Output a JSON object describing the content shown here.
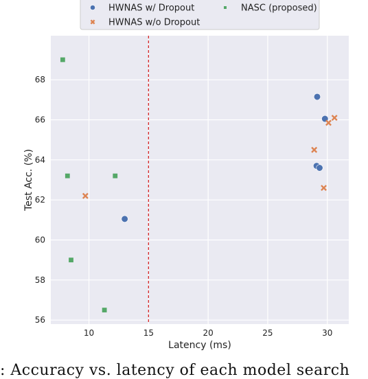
{
  "chart_data": {
    "type": "scatter",
    "xlabel": "Latency (ms)",
    "ylabel": "Test Acc. (%)",
    "xlim": [
      6.8,
      31.8
    ],
    "ylim": [
      55.8,
      70.2
    ],
    "x_ticks": [
      10,
      15,
      20,
      25,
      30
    ],
    "y_ticks": [
      56,
      58,
      60,
      62,
      64,
      66,
      68
    ],
    "grid": true,
    "background": "#eaeaf2",
    "legend_position": "top",
    "threshold_line": {
      "x": 15,
      "color": "#d62728",
      "style": "dashed"
    },
    "series": [
      {
        "name": "HWNAS w/ Dropout",
        "marker": "circle",
        "color": "#4c72b0",
        "points": [
          [
            13.0,
            61.05
          ],
          [
            29.15,
            67.15
          ],
          [
            29.8,
            66.05
          ],
          [
            29.1,
            63.7
          ],
          [
            29.35,
            63.6
          ]
        ]
      },
      {
        "name": "HWNAS w/o Dropout",
        "marker": "x",
        "color": "#dd8452",
        "points": [
          [
            9.7,
            62.2
          ],
          [
            28.9,
            64.5
          ],
          [
            29.7,
            62.6
          ],
          [
            30.1,
            65.85
          ],
          [
            30.6,
            66.1
          ]
        ]
      },
      {
        "name": "NASC (proposed)",
        "marker": "square",
        "color": "#55a868",
        "points": [
          [
            7.8,
            69.0
          ],
          [
            8.2,
            63.2
          ],
          [
            8.5,
            59.0
          ],
          [
            11.3,
            56.5
          ],
          [
            12.2,
            63.2
          ]
        ]
      }
    ]
  },
  "caption": ": Accuracy vs. latency of each model search"
}
